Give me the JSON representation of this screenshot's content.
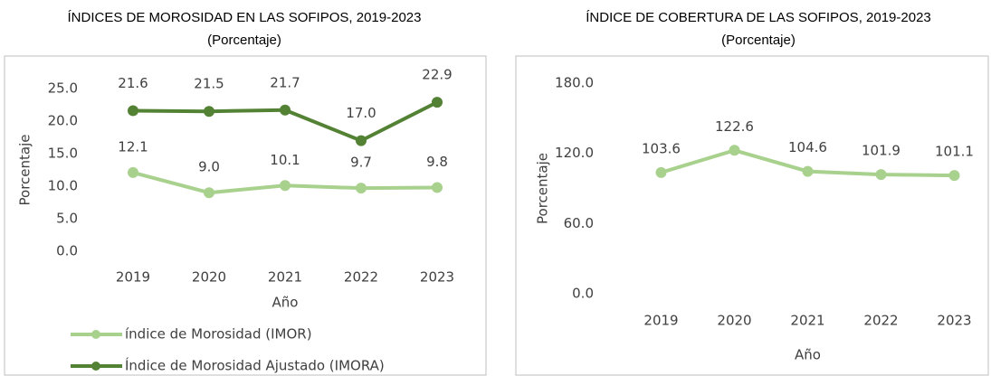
{
  "chart_data": [
    {
      "type": "line",
      "title": "ÍNDICES DE MOROSIDAD EN LAS SOFIPOS, 2019-2023",
      "subtitle": "(Porcentaje)",
      "x_label": "Año",
      "y_label": "Porcentaje",
      "categories": [
        "2019",
        "2020",
        "2021",
        "2022",
        "2023"
      ],
      "series": [
        {
          "name": "índice de Morosidad (IMOR)",
          "color": "#a9d18e",
          "values": [
            12.1,
            9.0,
            10.1,
            9.7,
            9.8
          ],
          "value_labels": [
            "12.1",
            "9.0",
            "10.1",
            "9.7",
            "9.8"
          ]
        },
        {
          "name": "Índice de Morosidad Ajustado (IMORA)",
          "color": "#548235",
          "values": [
            21.6,
            21.5,
            21.7,
            17.0,
            22.9
          ],
          "value_labels": [
            "21.6",
            "21.5",
            "21.7",
            "17.0",
            "22.9"
          ]
        }
      ],
      "ylim": [
        0,
        25
      ],
      "yticks": [
        {
          "value": 0,
          "label": "0.0"
        },
        {
          "value": 5,
          "label": "5.0"
        },
        {
          "value": 10,
          "label": "10.0"
        },
        {
          "value": 15,
          "label": "15.0"
        },
        {
          "value": 20,
          "label": "20.0"
        },
        {
          "value": 25,
          "label": "25.0"
        }
      ],
      "legend": "bottom"
    },
    {
      "type": "line",
      "title": "ÍNDICE DE COBERTURA DE LAS SOFIPOS, 2019-2023",
      "subtitle": "(Porcentaje)",
      "x_label": "Año",
      "y_label": "Porcentaje",
      "categories": [
        "2019",
        "2020",
        "2021",
        "2022",
        "2023"
      ],
      "series": [
        {
          "color": "#a9d18e",
          "values": [
            103.6,
            122.6,
            104.6,
            101.9,
            101.1
          ],
          "value_labels": [
            "103.6",
            "122.6",
            "104.6",
            "101.9",
            "101.1"
          ]
        }
      ],
      "ylim": [
        0,
        180
      ],
      "yticks": [
        {
          "value": 0,
          "label": "0.0"
        },
        {
          "value": 60,
          "label": "60.0"
        },
        {
          "value": 120,
          "label": "120.0"
        },
        {
          "value": 180,
          "label": "180.0"
        }
      ]
    }
  ]
}
